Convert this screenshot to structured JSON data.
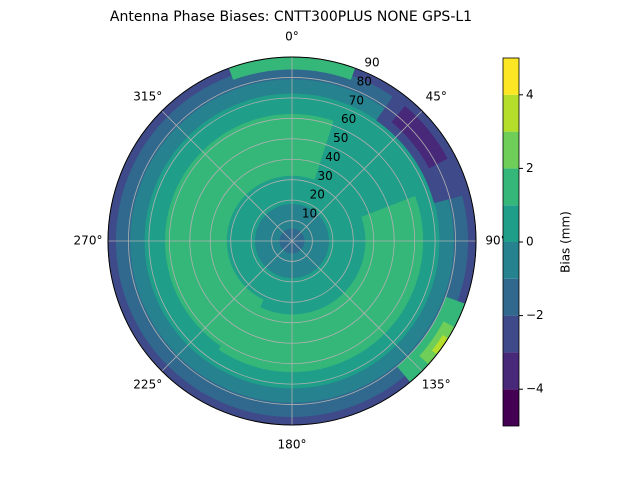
{
  "chart_data": {
    "type": "polar-contour",
    "title": "Antenna Phase Biases: CNTT300PLUS     NONE GPS-L1",
    "theta_ticks": [
      {
        "value": 0,
        "label": "0°"
      },
      {
        "value": 45,
        "label": "45°"
      },
      {
        "value": 90,
        "label": "90°"
      },
      {
        "value": 135,
        "label": "135°"
      },
      {
        "value": 180,
        "label": "180°"
      },
      {
        "value": 225,
        "label": "225°"
      },
      {
        "value": 270,
        "label": "270°"
      },
      {
        "value": 315,
        "label": "315°"
      }
    ],
    "rlim": [
      0,
      90
    ],
    "rticks": [
      10,
      20,
      30,
      40,
      50,
      60,
      70,
      80,
      90
    ],
    "grid": true,
    "regions": [
      {
        "value": -3,
        "theta": [
          0,
          360
        ],
        "r": [
          0,
          90
        ]
      },
      {
        "value": -2,
        "theta": [
          0,
          360
        ],
        "r": [
          0,
          86
        ]
      },
      {
        "value": -1,
        "theta": [
          0,
          360
        ],
        "r": [
          0,
          79
        ]
      },
      {
        "value": 0,
        "theta": [
          0,
          360
        ],
        "r": [
          0,
          72
        ]
      },
      {
        "value": -3,
        "theta": [
          35,
          75
        ],
        "r": [
          72,
          88
        ]
      },
      {
        "value": -4,
        "theta": [
          40,
          62
        ],
        "r": [
          76,
          86
        ]
      },
      {
        "value": 1,
        "theta": [
          205,
          380
        ],
        "r": [
          32,
          62
        ]
      },
      {
        "value": 1,
        "theta": [
          70,
          215
        ],
        "r": [
          36,
          64
        ]
      },
      {
        "value": 1,
        "theta": [
          340,
          20
        ],
        "r": [
          84,
          90
        ]
      },
      {
        "value": 1,
        "theta": [
          110,
          140
        ],
        "r": [
          80,
          90
        ]
      },
      {
        "value": 2,
        "theta": [
          118,
          132
        ],
        "r": [
          84,
          90
        ]
      },
      {
        "value": 3,
        "theta": [
          122,
          128
        ],
        "r": [
          87,
          90
        ]
      },
      {
        "value": -1,
        "theta": [
          0,
          360
        ],
        "r": [
          0,
          18
        ]
      },
      {
        "value": -2,
        "theta": [
          0,
          360
        ],
        "r": [
          0,
          6
        ]
      }
    ],
    "levels": [
      -5,
      -4,
      -3,
      -2,
      -1,
      0,
      1,
      2,
      3,
      4,
      5
    ],
    "colors": [
      "#440154",
      "#482878",
      "#3e4a89",
      "#31688e",
      "#26828e",
      "#1f9e89",
      "#35b779",
      "#6ece58",
      "#b5de2b",
      "#fde725"
    ],
    "colorbar_label": "Bias (mm)",
    "colorbar_ticks": [
      {
        "value": -4,
        "label": "−4"
      },
      {
        "value": -2,
        "label": "−2"
      },
      0,
      2,
      4
    ]
  }
}
